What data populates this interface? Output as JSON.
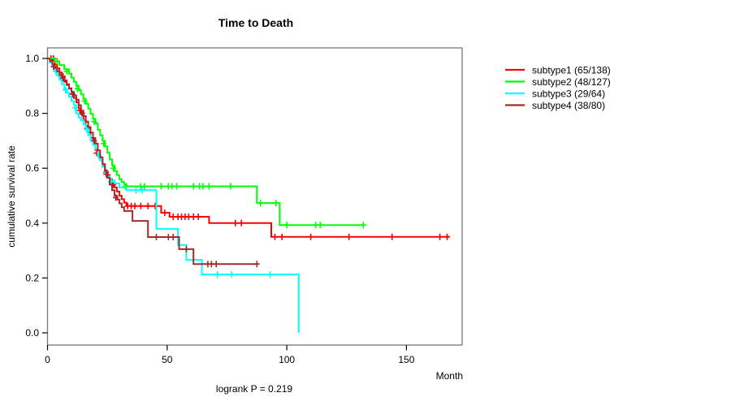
{
  "chart_data": {
    "type": "line",
    "subtype": "kaplan-meier-step-curves",
    "title": "Time to Death",
    "xlabel": "Month",
    "ylabel": "cumulative survival rate",
    "footer": "logrank P = 0.219",
    "xlim": [
      0,
      173
    ],
    "ylim": [
      0.0,
      1.0
    ],
    "xticks": [
      0,
      50,
      100,
      150
    ],
    "yticks": [
      "0.0",
      "0.2",
      "0.4",
      "0.6",
      "0.8",
      "1.0"
    ],
    "grid": false,
    "legend_position": "right-outside",
    "box_color": "#777777",
    "series": [
      {
        "name": "subtype1",
        "legend_label": "subtype1 (65/138)",
        "color": "#FF0000",
        "events": 65,
        "n": 138,
        "end_month": 168,
        "points": [
          [
            0,
            1.0
          ],
          [
            2,
            0.993
          ],
          [
            3,
            0.978
          ],
          [
            4,
            0.964
          ],
          [
            5,
            0.949
          ],
          [
            6,
            0.935
          ],
          [
            7,
            0.92
          ],
          [
            8,
            0.906
          ],
          [
            9,
            0.891
          ],
          [
            10,
            0.877
          ],
          [
            11,
            0.856
          ],
          [
            12,
            0.84
          ],
          [
            13,
            0.818
          ],
          [
            14,
            0.796
          ],
          [
            15,
            0.775
          ],
          [
            16,
            0.753
          ],
          [
            17,
            0.731
          ],
          [
            18,
            0.71
          ],
          [
            19,
            0.688
          ],
          [
            20,
            0.667
          ],
          [
            21,
            0.645
          ],
          [
            22,
            0.63
          ],
          [
            23,
            0.608
          ],
          [
            24,
            0.59
          ],
          [
            25,
            0.575
          ],
          [
            26,
            0.56
          ],
          [
            27,
            0.545
          ],
          [
            28,
            0.53
          ],
          [
            29,
            0.515
          ],
          [
            30,
            0.5
          ],
          [
            31,
            0.487
          ],
          [
            32,
            0.475
          ],
          [
            33,
            0.462
          ],
          [
            47.5,
            0.438
          ],
          [
            51,
            0.423
          ],
          [
            67.5,
            0.4
          ],
          [
            93.5,
            0.35
          ]
        ],
        "censors": [
          [
            1.5,
            1.0
          ],
          [
            2.5,
            1.0
          ],
          [
            6.5,
            0.935
          ],
          [
            10.5,
            0.87
          ],
          [
            13.5,
            0.81
          ],
          [
            16.5,
            0.745
          ],
          [
            20.5,
            0.655
          ],
          [
            24.5,
            0.585
          ],
          [
            27.5,
            0.54
          ],
          [
            33.5,
            0.462
          ],
          [
            35,
            0.462
          ],
          [
            36.5,
            0.462
          ],
          [
            39,
            0.462
          ],
          [
            42,
            0.462
          ],
          [
            45,
            0.462
          ],
          [
            49,
            0.438
          ],
          [
            52.5,
            0.423
          ],
          [
            54.5,
            0.423
          ],
          [
            56,
            0.423
          ],
          [
            57.5,
            0.423
          ],
          [
            59,
            0.423
          ],
          [
            61,
            0.423
          ],
          [
            63,
            0.423
          ],
          [
            78.5,
            0.4
          ],
          [
            81,
            0.4
          ],
          [
            95,
            0.35
          ],
          [
            98,
            0.35
          ],
          [
            110,
            0.35
          ],
          [
            126,
            0.35
          ],
          [
            144,
            0.35
          ],
          [
            164,
            0.35
          ],
          [
            167,
            0.35
          ]
        ]
      },
      {
        "name": "subtype2",
        "legend_label": "subtype2 (48/127)",
        "color": "#00FF00",
        "events": 48,
        "n": 127,
        "end_month": 132,
        "points": [
          [
            0,
            1.0
          ],
          [
            3,
            0.99
          ],
          [
            5,
            0.976
          ],
          [
            7,
            0.961
          ],
          [
            9,
            0.945
          ],
          [
            10,
            0.93
          ],
          [
            11,
            0.915
          ],
          [
            12,
            0.9
          ],
          [
            13,
            0.885
          ],
          [
            14,
            0.869
          ],
          [
            15,
            0.853
          ],
          [
            16,
            0.835
          ],
          [
            17,
            0.817
          ],
          [
            18,
            0.798
          ],
          [
            19,
            0.78
          ],
          [
            20,
            0.763
          ],
          [
            21,
            0.74
          ],
          [
            22,
            0.72
          ],
          [
            23,
            0.7
          ],
          [
            24,
            0.68
          ],
          [
            25,
            0.656
          ],
          [
            26,
            0.632
          ],
          [
            27,
            0.61
          ],
          [
            28,
            0.59
          ],
          [
            29,
            0.575
          ],
          [
            30,
            0.56
          ],
          [
            31,
            0.55
          ],
          [
            32,
            0.542
          ],
          [
            33,
            0.534
          ],
          [
            87.5,
            0.473
          ],
          [
            97,
            0.393
          ]
        ],
        "censors": [
          [
            4,
            0.99
          ],
          [
            8,
            0.953
          ],
          [
            12.5,
            0.89
          ],
          [
            15.5,
            0.845
          ],
          [
            19.5,
            0.77
          ],
          [
            23.5,
            0.69
          ],
          [
            27.5,
            0.6
          ],
          [
            32.5,
            0.534
          ],
          [
            39,
            0.534
          ],
          [
            40.5,
            0.534
          ],
          [
            47.5,
            0.534
          ],
          [
            50.5,
            0.534
          ],
          [
            52,
            0.534
          ],
          [
            54,
            0.534
          ],
          [
            61,
            0.534
          ],
          [
            63.5,
            0.534
          ],
          [
            65,
            0.534
          ],
          [
            67.5,
            0.534
          ],
          [
            76.5,
            0.534
          ],
          [
            89,
            0.473
          ],
          [
            95.5,
            0.473
          ],
          [
            100,
            0.393
          ],
          [
            112,
            0.393
          ],
          [
            114,
            0.393
          ],
          [
            132,
            0.393
          ]
        ]
      },
      {
        "name": "subtype3",
        "legend_label": "subtype3 (29/64)",
        "color": "#00FFFF",
        "events": 29,
        "n": 64,
        "end_month": 105,
        "points": [
          [
            0,
            1.0
          ],
          [
            1,
            0.984
          ],
          [
            2,
            0.969
          ],
          [
            3,
            0.953
          ],
          [
            4,
            0.938
          ],
          [
            5,
            0.922
          ],
          [
            6,
            0.906
          ],
          [
            7,
            0.89
          ],
          [
            8,
            0.875
          ],
          [
            9,
            0.86
          ],
          [
            10,
            0.845
          ],
          [
            11,
            0.83
          ],
          [
            12,
            0.8
          ],
          [
            13,
            0.785
          ],
          [
            14,
            0.775
          ],
          [
            15,
            0.76
          ],
          [
            16,
            0.745
          ],
          [
            17,
            0.72
          ],
          [
            18,
            0.7
          ],
          [
            19,
            0.685
          ],
          [
            20,
            0.67
          ],
          [
            21,
            0.65
          ],
          [
            22,
            0.63
          ],
          [
            23,
            0.605
          ],
          [
            24,
            0.585
          ],
          [
            25,
            0.57
          ],
          [
            26,
            0.555
          ],
          [
            28,
            0.545
          ],
          [
            30,
            0.53
          ],
          [
            33,
            0.52
          ],
          [
            45.5,
            0.379
          ],
          [
            54.5,
            0.32
          ],
          [
            58,
            0.266
          ],
          [
            64.5,
            0.213
          ],
          [
            105,
            0.0
          ]
        ],
        "censors": [
          [
            3.5,
            0.953
          ],
          [
            7.5,
            0.885
          ],
          [
            11.5,
            0.82
          ],
          [
            16.5,
            0.74
          ],
          [
            21.5,
            0.645
          ],
          [
            26.5,
            0.55
          ],
          [
            37,
            0.52
          ],
          [
            39.5,
            0.52
          ],
          [
            71,
            0.213
          ],
          [
            77,
            0.213
          ],
          [
            93,
            0.213
          ]
        ]
      },
      {
        "name": "subtype4",
        "legend_label": "subtype4 (38/80)",
        "color": "#A52A2A",
        "events": 38,
        "n": 80,
        "end_month": 88,
        "points": [
          [
            0,
            1.0
          ],
          [
            1,
            0.99
          ],
          [
            2,
            0.978
          ],
          [
            3,
            0.965
          ],
          [
            4,
            0.953
          ],
          [
            5,
            0.94
          ],
          [
            6,
            0.928
          ],
          [
            7,
            0.915
          ],
          [
            8,
            0.903
          ],
          [
            9,
            0.89
          ],
          [
            10,
            0.878
          ],
          [
            11,
            0.865
          ],
          [
            12,
            0.85
          ],
          [
            13,
            0.83
          ],
          [
            14,
            0.81
          ],
          [
            15,
            0.79
          ],
          [
            16,
            0.77
          ],
          [
            17,
            0.75
          ],
          [
            18,
            0.73
          ],
          [
            19,
            0.71
          ],
          [
            20,
            0.69
          ],
          [
            21,
            0.665
          ],
          [
            22,
            0.64
          ],
          [
            23,
            0.615
          ],
          [
            24,
            0.59
          ],
          [
            25,
            0.565
          ],
          [
            26,
            0.54
          ],
          [
            27,
            0.52
          ],
          [
            28,
            0.5
          ],
          [
            29,
            0.486
          ],
          [
            30,
            0.472
          ],
          [
            31,
            0.458
          ],
          [
            32,
            0.444
          ],
          [
            35.5,
            0.408
          ],
          [
            42,
            0.349
          ],
          [
            55,
            0.305
          ],
          [
            61,
            0.251
          ]
        ],
        "censors": [
          [
            2.5,
            0.97
          ],
          [
            6.5,
            0.928
          ],
          [
            10.5,
            0.87
          ],
          [
            14.5,
            0.8
          ],
          [
            19.5,
            0.7
          ],
          [
            24.5,
            0.578
          ],
          [
            28.5,
            0.493
          ],
          [
            45.5,
            0.349
          ],
          [
            50.5,
            0.349
          ],
          [
            52.5,
            0.349
          ],
          [
            58,
            0.305
          ],
          [
            67,
            0.251
          ],
          [
            68.5,
            0.251
          ],
          [
            70.5,
            0.251
          ],
          [
            87.5,
            0.251
          ]
        ]
      }
    ]
  }
}
